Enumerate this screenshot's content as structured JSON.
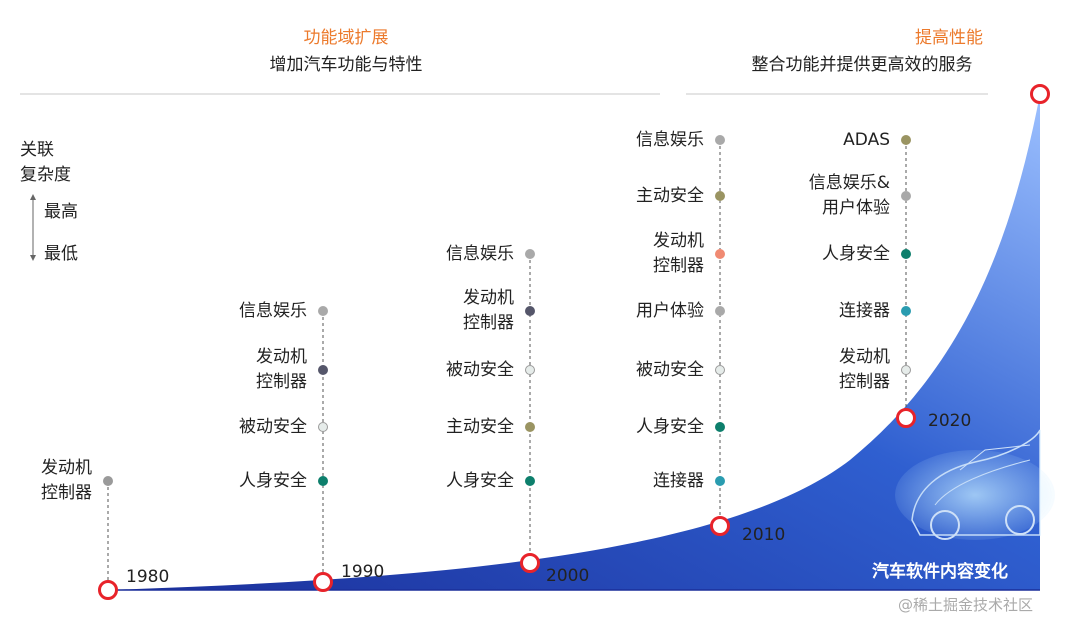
{
  "headers": {
    "left": {
      "title": "功能域扩展",
      "subtitle": "增加汽车功能与特性"
    },
    "right": {
      "title": "提高性能",
      "subtitle": "整合功能并提供更高效的服务"
    }
  },
  "legend": {
    "title_line1": "关联",
    "title_line2": "复杂度",
    "high": "最高",
    "low": "最低"
  },
  "eras": [
    {
      "year": "1980",
      "items": [
        {
          "label": "发动机\n控制器",
          "color": "#9a9a9a"
        }
      ]
    },
    {
      "year": "1990",
      "items": [
        {
          "label": "信息娱乐",
          "color": "#a9a9a9"
        },
        {
          "label": "发动机\n控制器",
          "color": "#55566a"
        },
        {
          "label": "被动安全",
          "color": "#e6ecea"
        },
        {
          "label": "人身安全",
          "color": "#0d7f6c"
        }
      ]
    },
    {
      "year": "2000",
      "items": [
        {
          "label": "信息娱乐",
          "color": "#a9a9a9"
        },
        {
          "label": "发动机\n控制器",
          "color": "#55566a"
        },
        {
          "label": "被动安全",
          "color": "#e6ecea"
        },
        {
          "label": "主动安全",
          "color": "#9a9462"
        },
        {
          "label": "人身安全",
          "color": "#0d7f6c"
        }
      ]
    },
    {
      "year": "2010",
      "items": [
        {
          "label": "信息娱乐",
          "color": "#a9a9a9"
        },
        {
          "label": "主动安全",
          "color": "#9a9462"
        },
        {
          "label": "发动机\n控制器",
          "color": "#f08a72"
        },
        {
          "label": "用户体验",
          "color": "#a9a9a9"
        },
        {
          "label": "被动安全",
          "color": "#e6ecea"
        },
        {
          "label": "人身安全",
          "color": "#0d7f6c"
        },
        {
          "label": "连接器",
          "color": "#2a9cb0"
        }
      ]
    },
    {
      "year": "2020",
      "items": [
        {
          "label": "ADAS",
          "color": "#9a9462"
        },
        {
          "label": "信息娱乐&\n用户体验",
          "color": "#a9a9a9"
        },
        {
          "label": "人身安全",
          "color": "#0d7f6c"
        },
        {
          "label": "连接器",
          "color": "#2a9cb0"
        },
        {
          "label": "发动机\n控制器",
          "color": "#e6ecea"
        }
      ]
    }
  ],
  "car_caption": "汽车软件内容变化",
  "watermark": "@稀土掘金技术社区",
  "colors": {
    "accent": "#ec7a2c",
    "curve_dark": "#1f3fa8",
    "curve_light": "#7aa7f5",
    "node": "#e8232a"
  }
}
